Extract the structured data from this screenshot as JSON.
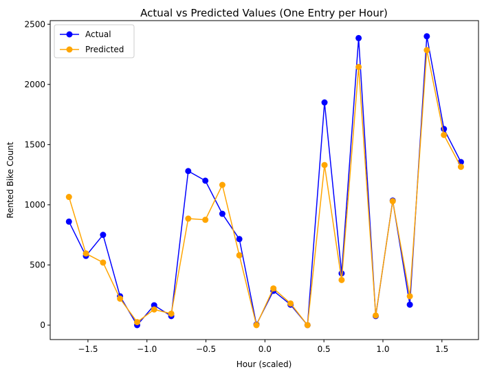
{
  "chart_data": {
    "type": "line",
    "title": "Actual vs Predicted Values (One Entry per Hour)",
    "xlabel": "Hour (scaled)",
    "ylabel": "Rented Bike Count",
    "xlim": [
      -1.82,
      1.81
    ],
    "ylim": [
      -120,
      2530
    ],
    "xticks": [
      -1.5,
      -1.0,
      -0.5,
      0.0,
      0.5,
      1.0,
      1.5
    ],
    "xtick_labels": [
      "−1.5",
      "−1.0",
      "−0.5",
      "0.0",
      "0.5",
      "1.0",
      "1.5"
    ],
    "yticks": [
      0,
      500,
      1000,
      1500,
      2000,
      2500
    ],
    "ytick_labels": [
      "0",
      "500",
      "1000",
      "1500",
      "2000",
      "2500"
    ],
    "grid": false,
    "legend_position": "upper-left",
    "x": [
      -1.661,
      -1.517,
      -1.372,
      -1.228,
      -1.083,
      -0.939,
      -0.794,
      -0.65,
      -0.505,
      -0.361,
      -0.217,
      -0.072,
      0.072,
      0.217,
      0.361,
      0.505,
      0.65,
      0.794,
      0.939,
      1.083,
      1.228,
      1.372,
      1.517,
      1.661
    ],
    "series": [
      {
        "name": "Actual",
        "color": "#0000ff",
        "values": [
          860,
          575,
          750,
          240,
          0,
          165,
          75,
          1280,
          1200,
          925,
          715,
          5,
          285,
          170,
          0,
          1850,
          430,
          2385,
          75,
          1035,
          170,
          2400,
          1630,
          1355
        ]
      },
      {
        "name": "Predicted",
        "color": "#ffa500",
        "values": [
          1065,
          595,
          520,
          220,
          25,
          130,
          95,
          885,
          875,
          1165,
          580,
          0,
          305,
          180,
          0,
          1330,
          375,
          2145,
          80,
          1030,
          240,
          2285,
          1580,
          1315
        ]
      }
    ]
  }
}
